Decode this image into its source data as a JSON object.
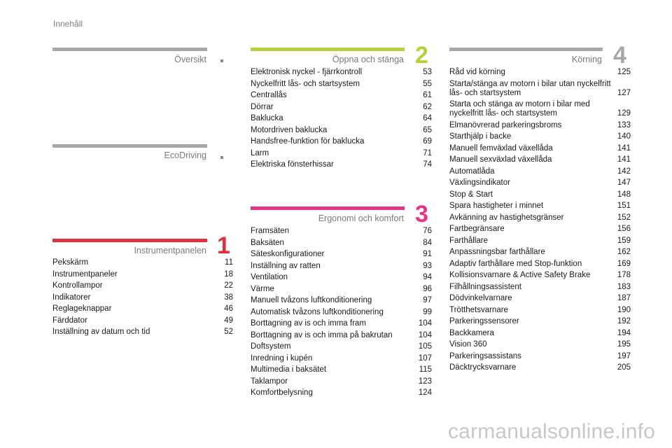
{
  "page": {
    "label": "Innehåll"
  },
  "colors": {
    "gray": "#a7a7a7",
    "green": "#b7cf3a",
    "pink": "#e6338a",
    "red": "#e03040"
  },
  "sections": {
    "oversikt": {
      "title": "Översikt"
    },
    "ecodriving": {
      "title": "EcoDriving"
    },
    "instrument": {
      "number": "1",
      "title": "Instrumentpanelen",
      "items": [
        {
          "label": "Pekskärm",
          "page": "11"
        },
        {
          "label": "Instrumentpaneler",
          "page": "18"
        },
        {
          "label": "Kontrollampor",
          "page": "22"
        },
        {
          "label": "Indikatorer",
          "page": "38"
        },
        {
          "label": "Reglageknappar",
          "page": "46"
        },
        {
          "label": "Färddator",
          "page": "49"
        },
        {
          "label": "Inställning av datum och tid",
          "page": "52"
        }
      ]
    },
    "oppna": {
      "number": "2",
      "title": "Öppna och stänga",
      "items": [
        {
          "label": "Elektronisk nyckel - fjärrkontroll",
          "page": "53"
        },
        {
          "label": "Nyckelfritt lås- och startsystem",
          "page": "55"
        },
        {
          "label": "Centrallås",
          "page": "61"
        },
        {
          "label": "Dörrar",
          "page": "62"
        },
        {
          "label": "Baklucka",
          "page": "64"
        },
        {
          "label": "Motordriven baklucka",
          "page": "65"
        },
        {
          "label": "Handsfree-funktion för baklucka",
          "page": "69"
        },
        {
          "label": "Larm",
          "page": "71"
        },
        {
          "label": "Elektriska fönsterhissar",
          "page": "74"
        }
      ]
    },
    "ergonomi": {
      "number": "3",
      "title": "Ergonomi och komfort",
      "items": [
        {
          "label": "Framsäten",
          "page": "76"
        },
        {
          "label": "Baksäten",
          "page": "84"
        },
        {
          "label": "Säteskonfigurationer",
          "page": "91"
        },
        {
          "label": "Inställning av ratten",
          "page": "93"
        },
        {
          "label": "Ventilation",
          "page": "94"
        },
        {
          "label": "Värme",
          "page": "96"
        },
        {
          "label": "Manuell tvåzons luftkonditionering",
          "page": "97"
        },
        {
          "label": "Automatisk tvåzons luftkonditionering",
          "page": "99"
        },
        {
          "label": "Borttagning av is och imma fram",
          "page": "104"
        },
        {
          "label": "Borttagning av is och imma på bakrutan",
          "page": "104"
        },
        {
          "label": "Doftsystem",
          "page": "105"
        },
        {
          "label": "Inredning i kupén",
          "page": "107"
        },
        {
          "label": "Multimedia i baksätet",
          "page": "115"
        },
        {
          "label": "Taklampor",
          "page": "123"
        },
        {
          "label": "Komfortbelysning",
          "page": "124"
        }
      ]
    },
    "korning": {
      "number": "4",
      "title": "Körning",
      "items": [
        {
          "label": "Råd vid körning",
          "page": "125"
        },
        {
          "label": "Starta/stänga av motorn i bilar utan nyckelfritt lås- och startsystem",
          "page": "127"
        },
        {
          "label": "Starta och stänga av motorn i bilar med nyckelfritt lås- och startsystem",
          "page": "129"
        },
        {
          "label": "Elmanövrerad parkeringsbroms",
          "page": "133"
        },
        {
          "label": "Starthjälp i backe",
          "page": "140"
        },
        {
          "label": "Manuell femväxlad växellåda",
          "page": "141"
        },
        {
          "label": "Manuell sexväxlad växellåda",
          "page": "141"
        },
        {
          "label": "Automatlåda",
          "page": "142"
        },
        {
          "label": "Växlingsindikator",
          "page": "147"
        },
        {
          "label": "Stop & Start",
          "page": "148"
        },
        {
          "label": "Spara hastigheter i minnet",
          "page": "151"
        },
        {
          "label": "Avkänning av hastighetsgränser",
          "page": "152"
        },
        {
          "label": "Fartbegränsare",
          "page": "156"
        },
        {
          "label": "Farthållare",
          "page": "159"
        },
        {
          "label": "Anpassningsbar farthållare",
          "page": "162"
        },
        {
          "label": "Adaptiv farthållare med Stop-funktion",
          "page": "169"
        },
        {
          "label": "Kollisionsvarnare & Active Safety Brake",
          "page": "178"
        },
        {
          "label": "Filhållningsassistent",
          "page": "183"
        },
        {
          "label": "Dödvinkelvarnare",
          "page": "187"
        },
        {
          "label": "Trötthetsvarnare",
          "page": "190"
        },
        {
          "label": "Parkeringssensorer",
          "page": "192"
        },
        {
          "label": "Backkamera",
          "page": "194"
        },
        {
          "label": "Vision 360",
          "page": "195"
        },
        {
          "label": "Parkeringsassistans",
          "page": "197"
        },
        {
          "label": "Däcktrycksvarnare",
          "page": "205"
        }
      ]
    }
  },
  "watermark": "carmanualsonline.info"
}
